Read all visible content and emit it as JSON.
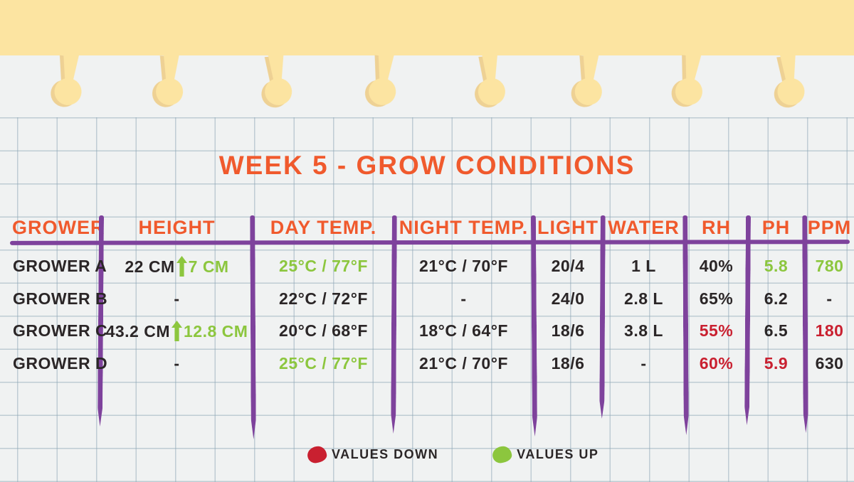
{
  "title": "WEEK 5 - GROW CONDITIONS",
  "chart_data": {
    "type": "table",
    "title": "WEEK 5 - GROW CONDITIONS",
    "columns": [
      "GROWER",
      "HEIGHT",
      "DAY TEMP.",
      "NIGHT TEMP.",
      "LIGHT",
      "WATER",
      "RH",
      "PH",
      "PPM"
    ],
    "rows": [
      [
        "GROWER A",
        "22 CM ↑ 7 CM",
        "25°C / 77°F",
        "21°C / 70°F",
        "20/4",
        "1 L",
        "40%",
        "5.8",
        "780"
      ],
      [
        "GROWER B",
        "-",
        "22°C / 72°F",
        "-",
        "24/0",
        "2.8 L",
        "65%",
        "6.2",
        "-"
      ],
      [
        "GROWER C",
        "43.2 CM ↑ 12.8 CM",
        "20°C / 68°F",
        "18°C / 64°F",
        "18/6",
        "3.8 L",
        "55%",
        "6.5",
        "180"
      ],
      [
        "GROWER D",
        "-",
        "25°C / 77°F",
        "21°C / 70°F",
        "18/6",
        "-",
        "60%",
        "5.9",
        "630"
      ]
    ],
    "legend": [
      "VALUES DOWN",
      "VALUES UP"
    ],
    "color_coding": "green = values up, red = values down"
  },
  "table": {
    "columns": [
      "GROWER",
      "HEIGHT",
      "DAY TEMP.",
      "NIGHT TEMP.",
      "LIGHT",
      "WATER",
      "RH",
      "PH",
      "PPM"
    ],
    "rows": [
      {
        "cells": [
          {
            "text": "GROWER A",
            "tone": "ink",
            "align": "left"
          },
          {
            "parts": [
              {
                "text": "22 CM",
                "tone": "ink"
              },
              {
                "icon": "up-arrow",
                "tone": "green"
              },
              {
                "text": "7 CM",
                "tone": "green"
              }
            ]
          },
          {
            "text": "25°C / 77°F",
            "tone": "green"
          },
          {
            "text": "21°C / 70°F",
            "tone": "ink"
          },
          {
            "text": "20/4",
            "tone": "ink"
          },
          {
            "text": "1 L",
            "tone": "ink"
          },
          {
            "text": "40%",
            "tone": "ink"
          },
          {
            "text": "5.8",
            "tone": "green"
          },
          {
            "text": "780",
            "tone": "green"
          }
        ]
      },
      {
        "cells": [
          {
            "text": "GROWER B",
            "tone": "ink",
            "align": "left"
          },
          {
            "text": "-",
            "tone": "ink"
          },
          {
            "text": "22°C / 72°F",
            "tone": "ink"
          },
          {
            "text": "-",
            "tone": "ink"
          },
          {
            "text": "24/0",
            "tone": "ink"
          },
          {
            "text": "2.8 L",
            "tone": "ink"
          },
          {
            "text": "65%",
            "tone": "ink"
          },
          {
            "text": "6.2",
            "tone": "ink"
          },
          {
            "text": "-",
            "tone": "ink"
          }
        ]
      },
      {
        "cells": [
          {
            "text": "GROWER C",
            "tone": "ink",
            "align": "left"
          },
          {
            "parts": [
              {
                "text": "43.2 CM",
                "tone": "ink"
              },
              {
                "icon": "up-arrow",
                "tone": "green"
              },
              {
                "text": "12.8 CM",
                "tone": "green"
              }
            ]
          },
          {
            "text": "20°C / 68°F",
            "tone": "ink"
          },
          {
            "text": "18°C / 64°F",
            "tone": "ink"
          },
          {
            "text": "18/6",
            "tone": "ink"
          },
          {
            "text": "3.8 L",
            "tone": "ink"
          },
          {
            "text": "55%",
            "tone": "red"
          },
          {
            "text": "6.5",
            "tone": "ink"
          },
          {
            "text": "180",
            "tone": "red"
          }
        ]
      },
      {
        "cells": [
          {
            "text": "GROWER D",
            "tone": "ink",
            "align": "left"
          },
          {
            "text": "-",
            "tone": "ink"
          },
          {
            "text": "25°C / 77°F",
            "tone": "green"
          },
          {
            "text": "21°C / 70°F",
            "tone": "ink"
          },
          {
            "text": "18/6",
            "tone": "ink"
          },
          {
            "text": "-",
            "tone": "ink"
          },
          {
            "text": "60%",
            "tone": "red"
          },
          {
            "text": "5.9",
            "tone": "red"
          },
          {
            "text": "630",
            "tone": "ink"
          }
        ]
      }
    ]
  },
  "legend": [
    {
      "swatch": "red",
      "label": "VALUES DOWN"
    },
    {
      "swatch": "green",
      "label": "VALUES UP"
    }
  ],
  "colors": {
    "orange": "#f05a2d",
    "purple": "#7e429c",
    "green": "#8cc63e",
    "red": "#c92030",
    "ink": "#2b2627",
    "yellow": "#fce4a1",
    "yellow-shadow": "#eed194",
    "paper": "#f0f2f2",
    "grid": "rgba(141,166,181,0.5)"
  }
}
